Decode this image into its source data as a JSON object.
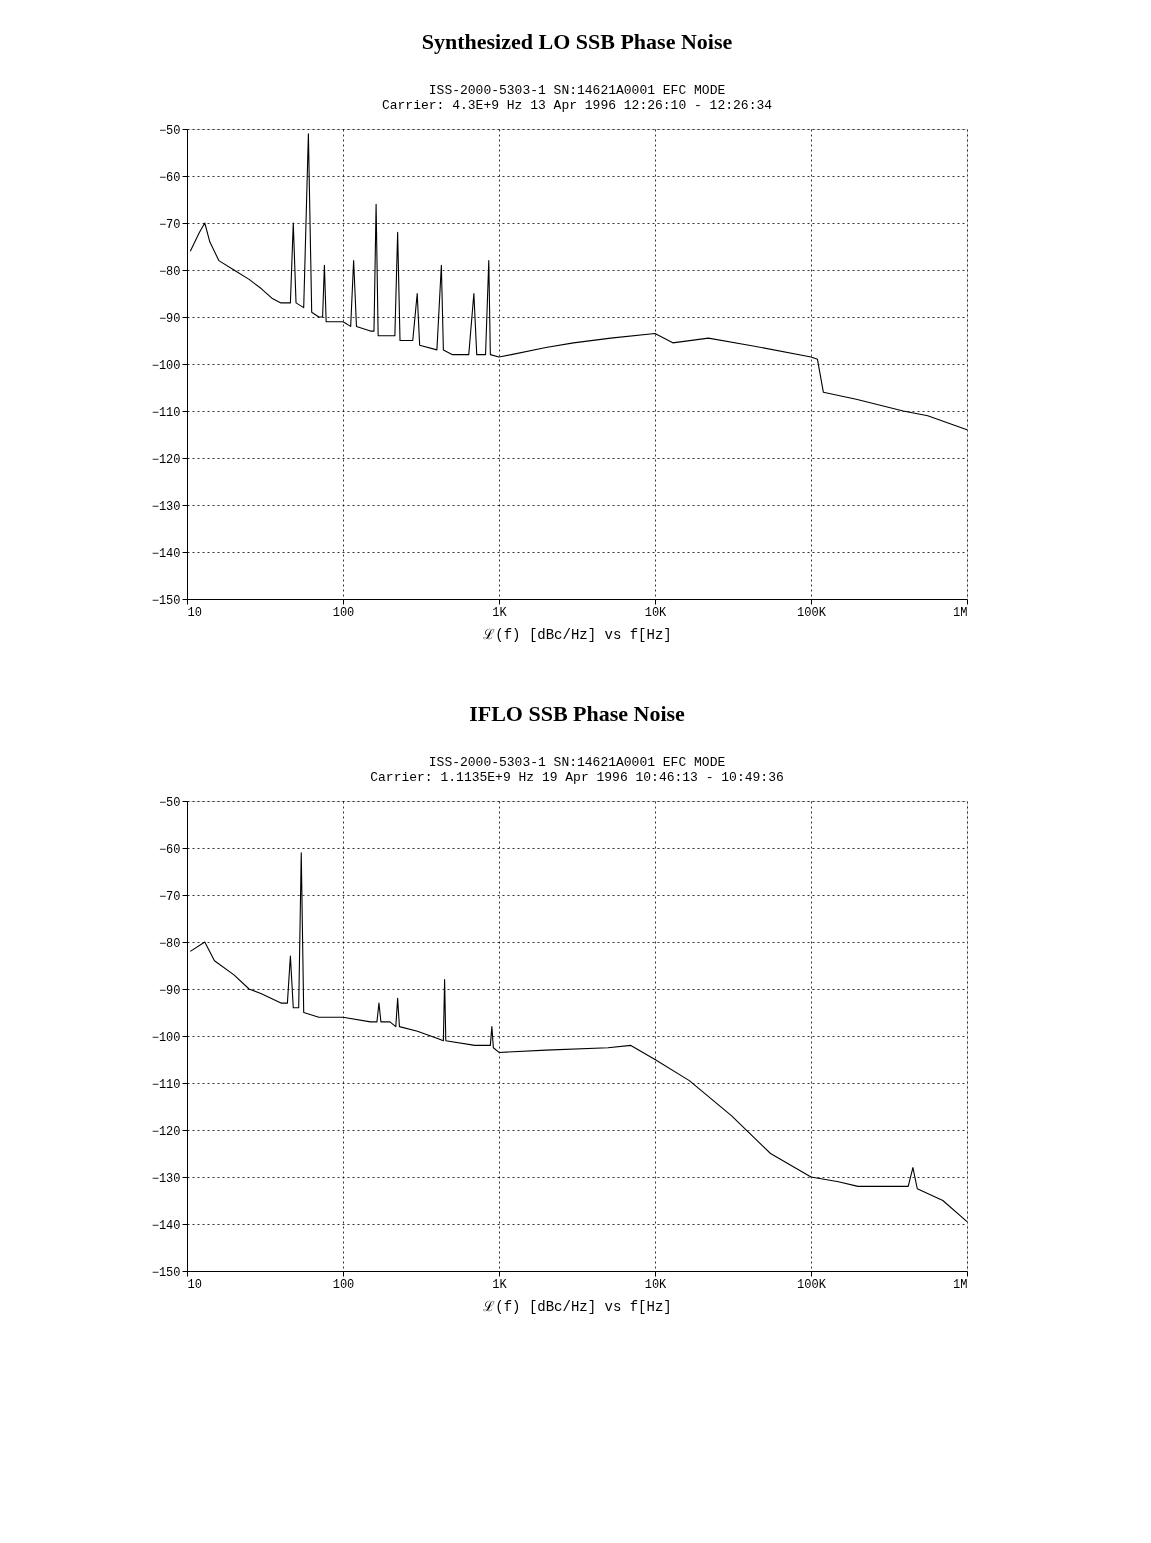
{
  "chart_data": [
    {
      "type": "line",
      "title": "Synthesized LO SSB Phase Noise",
      "subtitle": "ISS-2000-5303-1     SN:14621A0001          EFC MODE",
      "annotations": [
        "Carrier: 4.3E+9 Hz     13 Apr 1996   12:26:10 - 12:26:34"
      ],
      "xlabel": "ℒ(f) [dBc/Hz] vs f[Hz]",
      "xlim": [
        10,
        1000000
      ],
      "xticks": [
        {
          "value": 10,
          "label": "10"
        },
        {
          "value": 100,
          "label": "100"
        },
        {
          "value": 1000,
          "label": "1K"
        },
        {
          "value": 10000,
          "label": "10K"
        },
        {
          "value": 100000,
          "label": "100K"
        },
        {
          "value": 1000000,
          "label": "1M"
        }
      ],
      "ylim": [
        -150,
        -50
      ],
      "yticks": [
        -150,
        -140,
        -130,
        -120,
        -110,
        -100,
        -90,
        -80,
        -70,
        -60,
        -50
      ],
      "log": "x",
      "grid": true,
      "marker": "none",
      "line_style": "solid",
      "series": [
        {
          "color": "#000000",
          "x": [
            10.5,
            12,
            13,
            14,
            16,
            20,
            25,
            30,
            35,
            40,
            46,
            48,
            50,
            56,
            60,
            63,
            70,
            74,
            76,
            78,
            85,
            100,
            112,
            117,
            122,
            150,
            158,
            163,
            168,
            200,
            215,
            224,
            232,
            280,
            299,
            310,
            400,
            427,
            440,
            500,
            640,
            690,
            720,
            820,
            860,
            880,
            1000,
            1200,
            2000,
            3000,
            5200,
            10000,
            13000,
            22000,
            40000,
            100000,
            110000,
            120000,
            195000,
            390000,
            560000,
            1000000
          ],
          "values": [
            -76,
            -72,
            -70,
            -74,
            -78,
            -80,
            -82,
            -84,
            -86,
            -87,
            -87,
            -70,
            -87,
            -88,
            -51,
            -89,
            -90,
            -90,
            -79,
            -91,
            -91,
            -91,
            -92,
            -78,
            -92,
            -93,
            -93,
            -66,
            -94,
            -94,
            -94,
            -72,
            -95,
            -95,
            -85,
            -96,
            -97,
            -79,
            -97,
            -98,
            -98,
            -85,
            -98,
            -98,
            -78,
            -98,
            -98.5,
            -98,
            -96.5,
            -95.5,
            -94.5,
            -93.5,
            -95.5,
            -94.5,
            -96,
            -98.5,
            -99,
            -106,
            -107.5,
            -110,
            -111,
            -114
          ]
        }
      ]
    },
    {
      "type": "line",
      "title": "IFLO SSB Phase Noise",
      "subtitle": "ISS-2000-5303-1     SN:14621A0001          EFC MODE",
      "annotations": [
        "Carrier: 1.1135E+9 Hz   19 Apr 1996   10:46:13 - 10:49:36"
      ],
      "xlabel": "ℒ(f) [dBc/Hz] vs f[Hz]",
      "xlim": [
        10,
        1000000
      ],
      "xticks": [
        {
          "value": 10,
          "label": "10"
        },
        {
          "value": 100,
          "label": "100"
        },
        {
          "value": 1000,
          "label": "1K"
        },
        {
          "value": 10000,
          "label": "10K"
        },
        {
          "value": 100000,
          "label": "100K"
        },
        {
          "value": 1000000,
          "label": "1M"
        }
      ],
      "ylim": [
        -150,
        -50
      ],
      "yticks": [
        -150,
        -140,
        -130,
        -120,
        -110,
        -100,
        -90,
        -80,
        -70,
        -60,
        -50
      ],
      "log": "x",
      "grid": true,
      "marker": "none",
      "line_style": "solid",
      "series": [
        {
          "color": "#000000",
          "x": [
            10.5,
            13,
            15,
            20,
            25,
            30,
            40,
            44,
            46,
            48,
            52,
            54,
            56,
            70,
            100,
            150,
            165,
            170,
            175,
            200,
            218,
            224,
            230,
            300,
            400,
            440,
            448,
            456,
            700,
            880,
            900,
            920,
            1000,
            2000,
            5000,
            7000,
            10000,
            16600,
            31000,
            55000,
            100000,
            150000,
            200000,
            420000,
            450000,
            480000,
            700000,
            1000000
          ],
          "values": [
            -82,
            -80,
            -84,
            -87,
            -90,
            -91,
            -93,
            -93,
            -83,
            -94,
            -94,
            -61,
            -95,
            -96,
            -96,
            -97,
            -97,
            -93,
            -97,
            -97,
            -98,
            -92,
            -98,
            -99,
            -100.5,
            -101,
            -88,
            -101,
            -102,
            -102,
            -98,
            -102.5,
            -103.5,
            -103,
            -102.5,
            -102,
            -105,
            -109.5,
            -117,
            -125,
            -130,
            -131,
            -132,
            -132,
            -128,
            -132.5,
            -135,
            -139.5
          ]
        }
      ]
    }
  ]
}
